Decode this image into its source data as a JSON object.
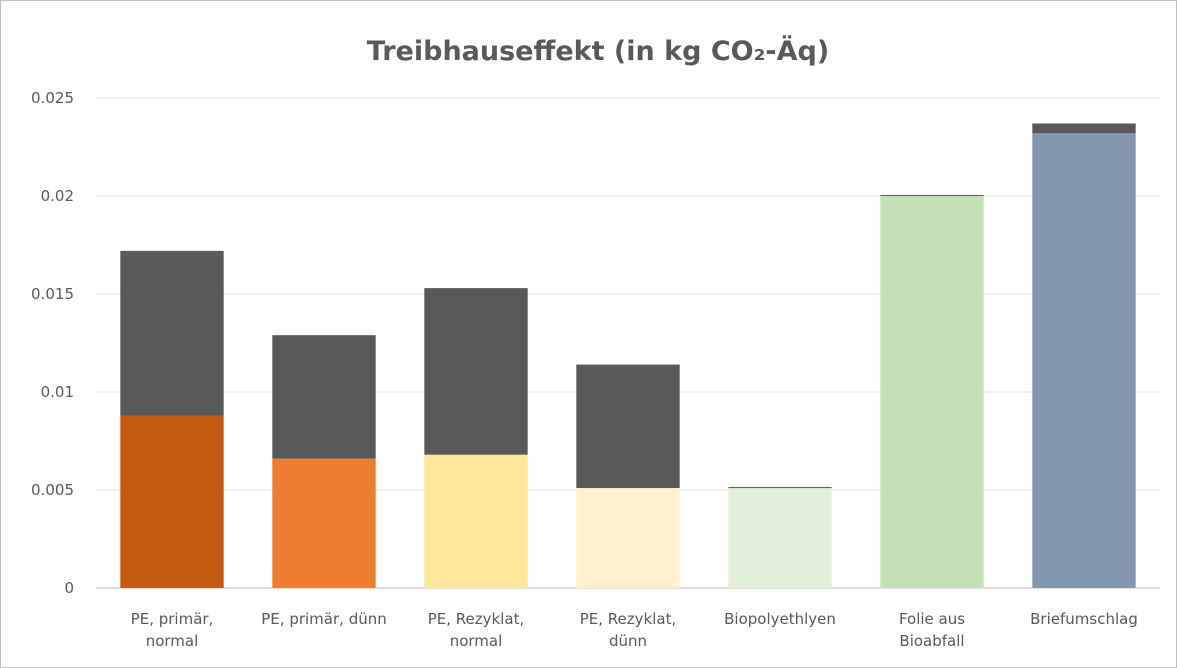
{
  "chart_data": {
    "type": "stacked_bar",
    "title": "Treibhauseffekt (in kg CO₂-Äq)",
    "categories": [
      "PE, primär,\nnormal",
      "PE, primär, dünn",
      "PE, Rezyklat,\nnormal",
      "PE, Rezyklat,\ndünn",
      "Biopolyethlyen",
      "Folie aus\nBioabfall",
      "Briefumschlag"
    ],
    "series": [
      {
        "colors": [
          "#c55a11",
          "#ed7d31",
          "#ffe699",
          "#fff2cc",
          "#e2efda",
          "#c5e0b4",
          "#8497b0"
        ],
        "values": [
          0.0088,
          0.0066,
          0.0068,
          0.0051,
          0.0051,
          0.02,
          0.0232
        ]
      },
      {
        "color": "#595959",
        "values": [
          0.0084,
          0.0063,
          0.0085,
          0.0063,
          5e-05,
          5e-05,
          0.0005
        ]
      }
    ],
    "ylim": [
      0,
      0.025
    ],
    "yticks": [
      0,
      0.005,
      0.01,
      0.015,
      0.02,
      0.025
    ],
    "grid": true
  }
}
